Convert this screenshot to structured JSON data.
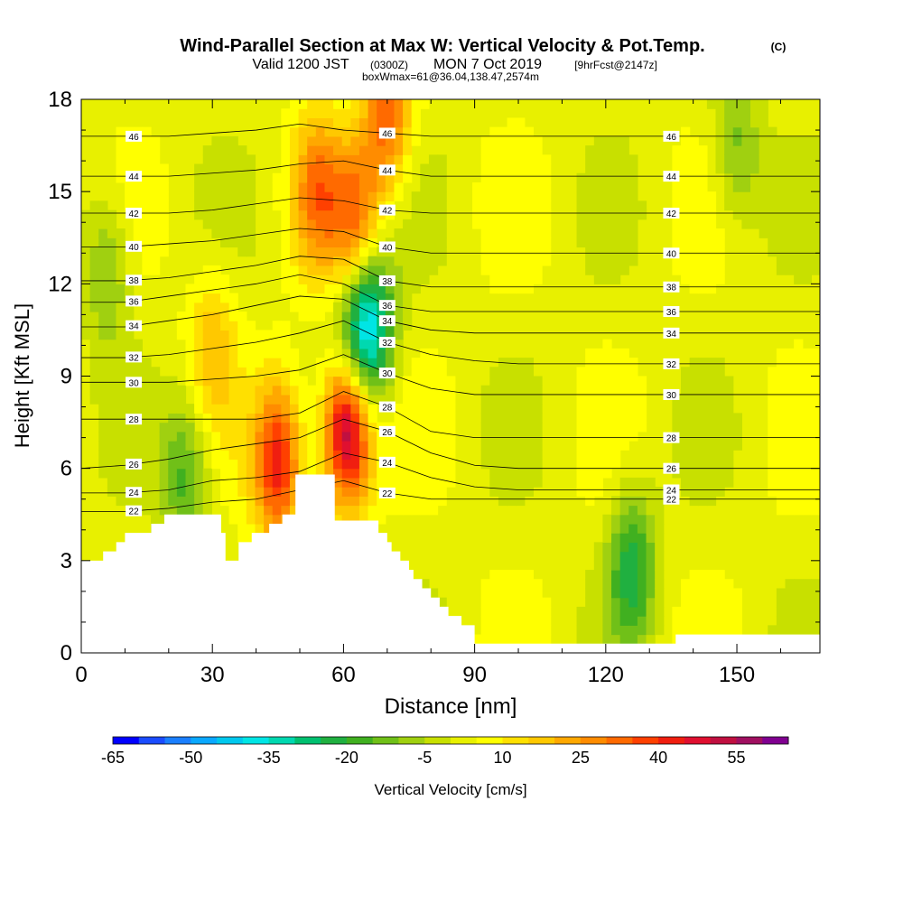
{
  "chart_data": {
    "type": "heatmap",
    "title": "Wind-Parallel Section at Max W: Vertical Velocity & Pot.Temp.",
    "title_suffix": "(C)",
    "subtitle": {
      "valid_label": "Valid 1200 JST",
      "utc": "(0300Z)",
      "date": "MON 7 Oct 2019",
      "forecast": "[9hrFcst@2147z]"
    },
    "subtitle2": "boxWmax=61@36.04,138.47,2574m",
    "xlabel": "Distance [nm]",
    "ylabel": "Height [Kft MSL]",
    "xlim": [
      0,
      169
    ],
    "ylim": [
      0,
      18
    ],
    "xticks": [
      0,
      30,
      60,
      90,
      120,
      150
    ],
    "yticks": [
      0,
      3,
      6,
      9,
      12,
      15,
      18
    ],
    "colorbar": {
      "label": "Vertical Velocity [cm/s]",
      "tick_labels": [
        "-65",
        "-50",
        "-35",
        "-20",
        "-5",
        "10",
        "25",
        "40",
        "55"
      ],
      "tick_values": [
        -65,
        -50,
        -35,
        -20,
        -5,
        10,
        25,
        40,
        55
      ],
      "levels": [
        -65,
        -60,
        -55,
        -50,
        -45,
        -40,
        -35,
        -30,
        -25,
        -20,
        -15,
        -10,
        -5,
        0,
        5,
        10,
        15,
        20,
        25,
        30,
        35,
        40,
        45,
        50,
        55,
        60,
        65
      ],
      "colors": [
        "#0000ff",
        "#1a4cff",
        "#1a7fff",
        "#0aa8ff",
        "#00c8ee",
        "#00e5e5",
        "#00d8b0",
        "#00c070",
        "#20b040",
        "#40b020",
        "#70c018",
        "#a0d010",
        "#c8e000",
        "#e8f000",
        "#ffff00",
        "#ffe000",
        "#ffc800",
        "#ffa800",
        "#ff8c00",
        "#ff6a00",
        "#ff4000",
        "#f01e10",
        "#e01030",
        "#c01040",
        "#a01060",
        "#800090"
      ]
    },
    "terrain": [
      [
        0,
        3
      ],
      [
        5,
        3
      ],
      [
        5,
        3.3
      ],
      [
        8,
        3.3
      ],
      [
        8,
        3.6
      ],
      [
        10,
        3.6
      ],
      [
        10,
        3.9
      ],
      [
        16,
        3.9
      ],
      [
        16,
        4.2
      ],
      [
        19,
        4.2
      ],
      [
        19,
        4.5
      ],
      [
        32,
        4.5
      ],
      [
        32,
        3.9
      ],
      [
        33,
        3.9
      ],
      [
        33,
        3
      ],
      [
        36,
        3
      ],
      [
        36,
        3.6
      ],
      [
        39,
        3.6
      ],
      [
        39,
        3.9
      ],
      [
        43,
        3.9
      ],
      [
        43,
        4.2
      ],
      [
        46,
        4.2
      ],
      [
        46,
        4.5
      ],
      [
        49,
        4.5
      ],
      [
        49,
        5.8
      ],
      [
        58,
        5.8
      ],
      [
        58,
        4.3
      ],
      [
        68,
        4.3
      ],
      [
        68,
        3.9
      ],
      [
        70,
        3.9
      ],
      [
        70,
        3.6
      ],
      [
        71,
        3.6
      ],
      [
        71,
        3.3
      ],
      [
        73,
        3.3
      ],
      [
        73,
        3
      ],
      [
        75,
        3
      ],
      [
        75,
        2.7
      ],
      [
        76,
        2.7
      ],
      [
        76,
        2.4
      ],
      [
        78,
        2.4
      ],
      [
        78,
        2.1
      ],
      [
        80,
        2.1
      ],
      [
        80,
        1.8
      ],
      [
        82,
        1.8
      ],
      [
        82,
        1.5
      ],
      [
        84,
        1.5
      ],
      [
        84,
        1.2
      ],
      [
        87,
        1.2
      ],
      [
        87,
        0.9
      ],
      [
        90,
        0.9
      ],
      [
        90,
        0.3
      ],
      [
        136,
        0.3
      ],
      [
        136,
        0.6
      ],
      [
        169,
        0.6
      ]
    ],
    "theta_contours": [
      {
        "label": "22",
        "y": [
          4.6,
          4.6,
          4.7,
          4.9,
          5.0,
          5.3,
          5.6,
          5.2,
          5.0,
          5.0,
          5.0,
          5.0,
          5.0,
          5.0,
          5.0,
          5.0,
          5.0
        ]
      },
      {
        "label": "24",
        "y": [
          5.2,
          5.2,
          5.3,
          5.6,
          5.7,
          5.9,
          6.5,
          6.2,
          5.7,
          5.4,
          5.3,
          5.3,
          5.3,
          5.3,
          5.3,
          5.3,
          5.3
        ]
      },
      {
        "label": "26",
        "y": [
          6.0,
          6.1,
          6.3,
          6.6,
          6.8,
          7.0,
          7.6,
          7.2,
          6.5,
          6.1,
          6.0,
          6.0,
          6.0,
          6.0,
          6.0,
          6.0,
          6.0
        ]
      },
      {
        "label": "28",
        "y": [
          7.6,
          7.6,
          7.6,
          7.6,
          7.6,
          7.8,
          8.5,
          8.0,
          7.2,
          7.0,
          7.0,
          7.0,
          7.0,
          7.0,
          7.0,
          7.0,
          7.0
        ]
      },
      {
        "label": "30",
        "y": [
          8.8,
          8.8,
          8.8,
          8.9,
          9.0,
          9.2,
          9.7,
          9.1,
          8.6,
          8.4,
          8.4,
          8.4,
          8.4,
          8.4,
          8.4,
          8.4,
          8.4
        ]
      },
      {
        "label": "32",
        "y": [
          9.6,
          9.6,
          9.7,
          9.9,
          10.1,
          10.4,
          10.8,
          10.1,
          9.7,
          9.5,
          9.4,
          9.4,
          9.4,
          9.4,
          9.4,
          9.4,
          9.4
        ]
      },
      {
        "label": "34",
        "y": [
          10.6,
          10.6,
          10.8,
          11.0,
          11.3,
          11.6,
          11.5,
          10.8,
          10.5,
          10.4,
          10.4,
          10.4,
          10.4,
          10.4,
          10.4,
          10.4,
          10.4
        ]
      },
      {
        "label": "36",
        "y": [
          11.4,
          11.4,
          11.6,
          11.8,
          12.0,
          12.3,
          12.0,
          11.3,
          11.1,
          11.1,
          11.1,
          11.1,
          11.1,
          11.1,
          11.1,
          11.1,
          11.1
        ]
      },
      {
        "label": "38",
        "y": [
          12.1,
          12.1,
          12.2,
          12.4,
          12.6,
          12.9,
          12.8,
          12.1,
          11.9,
          11.9,
          11.9,
          11.9,
          11.9,
          11.9,
          11.9,
          11.9,
          11.9
        ]
      },
      {
        "label": "40",
        "y": [
          13.2,
          13.2,
          13.3,
          13.4,
          13.6,
          13.8,
          13.7,
          13.2,
          13.0,
          13.0,
          13.0,
          13.0,
          13.0,
          13.0,
          13.0,
          13.0,
          13.0
        ]
      },
      {
        "label": "42",
        "y": [
          14.3,
          14.3,
          14.3,
          14.4,
          14.6,
          14.8,
          14.7,
          14.4,
          14.3,
          14.3,
          14.3,
          14.3,
          14.3,
          14.3,
          14.3,
          14.3,
          14.3
        ]
      },
      {
        "label": "44",
        "y": [
          15.5,
          15.5,
          15.5,
          15.6,
          15.7,
          15.9,
          16.0,
          15.7,
          15.5,
          15.5,
          15.5,
          15.5,
          15.5,
          15.5,
          15.5,
          15.5,
          15.5
        ]
      },
      {
        "label": "46",
        "y": [
          16.8,
          16.8,
          16.8,
          16.9,
          17.0,
          17.2,
          17.0,
          16.9,
          16.8,
          16.8,
          16.8,
          16.8,
          16.8,
          16.8,
          16.8,
          16.8,
          16.8
        ]
      }
    ],
    "theta_contour_x": [
      0,
      10,
      20,
      30,
      40,
      50,
      60,
      70,
      80,
      90,
      100,
      110,
      120,
      130,
      140,
      150,
      169
    ],
    "w_features": [
      {
        "x": 61,
        "y": 7.5,
        "w": 65
      },
      {
        "x": 66,
        "y": 10.8,
        "w": -40
      },
      {
        "x": 62,
        "y": 9.5,
        "w": -25
      },
      {
        "x": 45,
        "y": 6.2,
        "w": 40
      },
      {
        "x": 54,
        "y": 15.0,
        "w": 25
      },
      {
        "x": 63,
        "y": 14.0,
        "w": 30
      },
      {
        "x": 70,
        "y": 17.5,
        "w": 30
      },
      {
        "x": 24,
        "y": 5.7,
        "w": -20
      },
      {
        "x": 126,
        "y": 2.8,
        "w": -25
      },
      {
        "x": 150,
        "y": 16.5,
        "w": -15
      },
      {
        "x": 6,
        "y": 12.5,
        "w": -15
      },
      {
        "x": 30,
        "y": 10.0,
        "w": 15
      }
    ]
  }
}
